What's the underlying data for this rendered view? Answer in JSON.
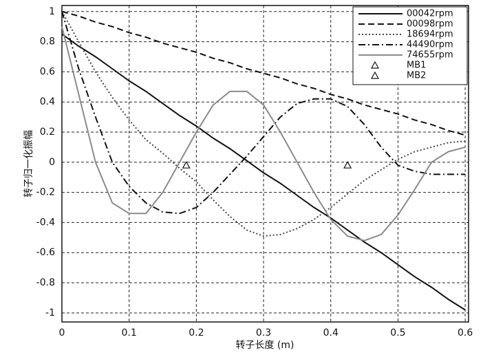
{
  "chart_data": {
    "type": "line",
    "x_label": "转子长度 (m)",
    "y_label": "转子归一化振幅",
    "x": [
      0,
      0.025,
      0.05,
      0.075,
      0.1,
      0.125,
      0.15,
      0.175,
      0.2,
      0.225,
      0.25,
      0.275,
      0.3,
      0.325,
      0.35,
      0.375,
      0.4,
      0.425,
      0.45,
      0.475,
      0.5,
      0.525,
      0.55,
      0.575,
      0.6
    ],
    "series": [
      {
        "name": "00042rpm",
        "color": "#111111",
        "dash": "solid",
        "values": [
          0.85,
          0.77,
          0.7,
          0.62,
          0.54,
          0.47,
          0.39,
          0.31,
          0.24,
          0.16,
          0.09,
          0.01,
          -0.07,
          -0.14,
          -0.22,
          -0.3,
          -0.37,
          -0.45,
          -0.53,
          -0.6,
          -0.68,
          -0.76,
          -0.83,
          -0.91,
          -0.98
        ]
      },
      {
        "name": "00098rpm",
        "color": "#111111",
        "dash": "dashed",
        "values": [
          1,
          0.97,
          0.93,
          0.9,
          0.86,
          0.83,
          0.79,
          0.76,
          0.73,
          0.69,
          0.66,
          0.62,
          0.59,
          0.56,
          0.52,
          0.49,
          0.45,
          0.42,
          0.38,
          0.35,
          0.32,
          0.28,
          0.25,
          0.21,
          0.18
        ]
      },
      {
        "name": "18694rpm",
        "color": "#444444",
        "dash": "dotted",
        "values": [
          1,
          0.8,
          0.6,
          0.43,
          0.28,
          0.15,
          0.06,
          -0.04,
          -0.13,
          -0.25,
          -0.36,
          -0.45,
          -0.49,
          -0.48,
          -0.44,
          -0.38,
          -0.3,
          -0.21,
          -0.12,
          -0.05,
          0.02,
          0.07,
          0.1,
          0.13,
          0.14
        ]
      },
      {
        "name": "44490rpm",
        "color": "#111111",
        "dash": "dashdot",
        "values": [
          1,
          0.62,
          0.3,
          0.0,
          -0.16,
          -0.27,
          -0.33,
          -0.34,
          -0.3,
          -0.2,
          -0.08,
          0.04,
          0.17,
          0.3,
          0.39,
          0.42,
          0.42,
          0.37,
          0.25,
          0.1,
          -0.02,
          -0.06,
          -0.08,
          -0.08,
          -0.08
        ]
      },
      {
        "name": "74655rpm",
        "color": "#8a8a8a",
        "dash": "solid",
        "values": [
          0.9,
          0.45,
          0.0,
          -0.27,
          -0.34,
          -0.34,
          -0.2,
          0.0,
          0.2,
          0.38,
          0.47,
          0.47,
          0.38,
          0.2,
          0.0,
          -0.2,
          -0.38,
          -0.49,
          -0.52,
          -0.48,
          -0.35,
          -0.18,
          0.0,
          0.07,
          0.1
        ]
      },
      {
        "name": "MB1",
        "color": "#111111",
        "marker": "triangle",
        "x": [
          0.185
        ],
        "values": [
          -0.02
        ]
      },
      {
        "name": "MB2",
        "color": "#111111",
        "marker": "triangle",
        "x": [
          0.425
        ],
        "values": [
          -0.02
        ]
      }
    ],
    "xlim": [
      0,
      0.605
    ],
    "ylim": [
      -1.06,
      1.04
    ],
    "xticks": [
      0,
      0.1,
      0.2,
      0.3,
      0.4,
      0.5,
      0.6
    ],
    "yticks": [
      -1,
      -0.8,
      -0.6,
      -0.4,
      -0.2,
      0,
      0.2,
      0.4,
      0.6,
      0.8,
      1
    ],
    "grid": true,
    "legend": "upper right"
  }
}
